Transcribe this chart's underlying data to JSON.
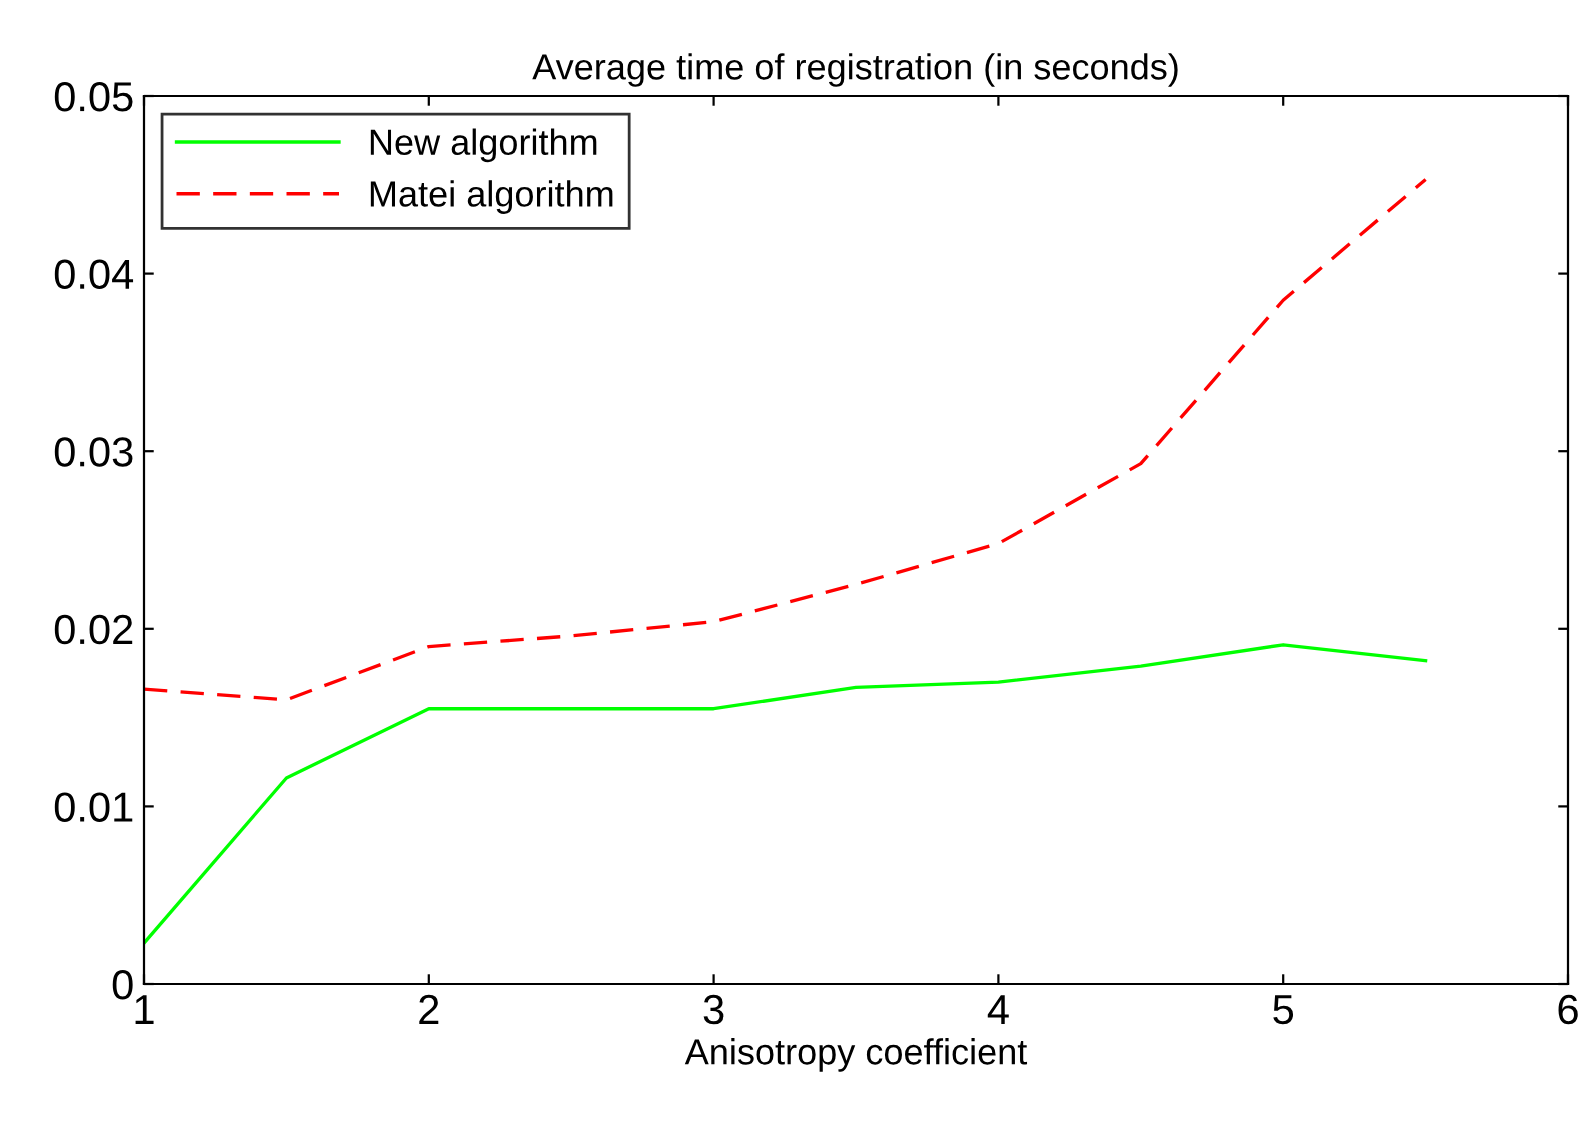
{
  "chart_data": {
    "type": "line",
    "title": "Average time of registration (in seconds)",
    "xlabel": "Anisotropy coefficient",
    "x": [
      1,
      1.5,
      2,
      2.5,
      3,
      3.5,
      4,
      4.5,
      5,
      5.5
    ],
    "series": [
      {
        "name": "New algorithm",
        "color": "#00ff00",
        "line_style": "solid",
        "values": [
          0.0023,
          0.0116,
          0.0155,
          0.0155,
          0.0155,
          0.0167,
          0.017,
          0.0179,
          0.0191,
          0.0182
        ]
      },
      {
        "name": "Matei algorithm",
        "color": "#ff0000",
        "line_style": "dashed",
        "values": [
          0.0166,
          0.016,
          0.019,
          0.0196,
          0.0204,
          0.0225,
          0.0248,
          0.0293,
          0.0385,
          0.0453
        ]
      }
    ],
    "xlim": [
      1,
      6
    ],
    "xticks": [
      1,
      2,
      3,
      4,
      5,
      6
    ],
    "ylim": [
      0,
      0.05
    ],
    "yticks": [
      0,
      0.01,
      0.02,
      0.03,
      0.04,
      0.05
    ],
    "grid": false,
    "legend": "top left",
    "marker": "none"
  }
}
